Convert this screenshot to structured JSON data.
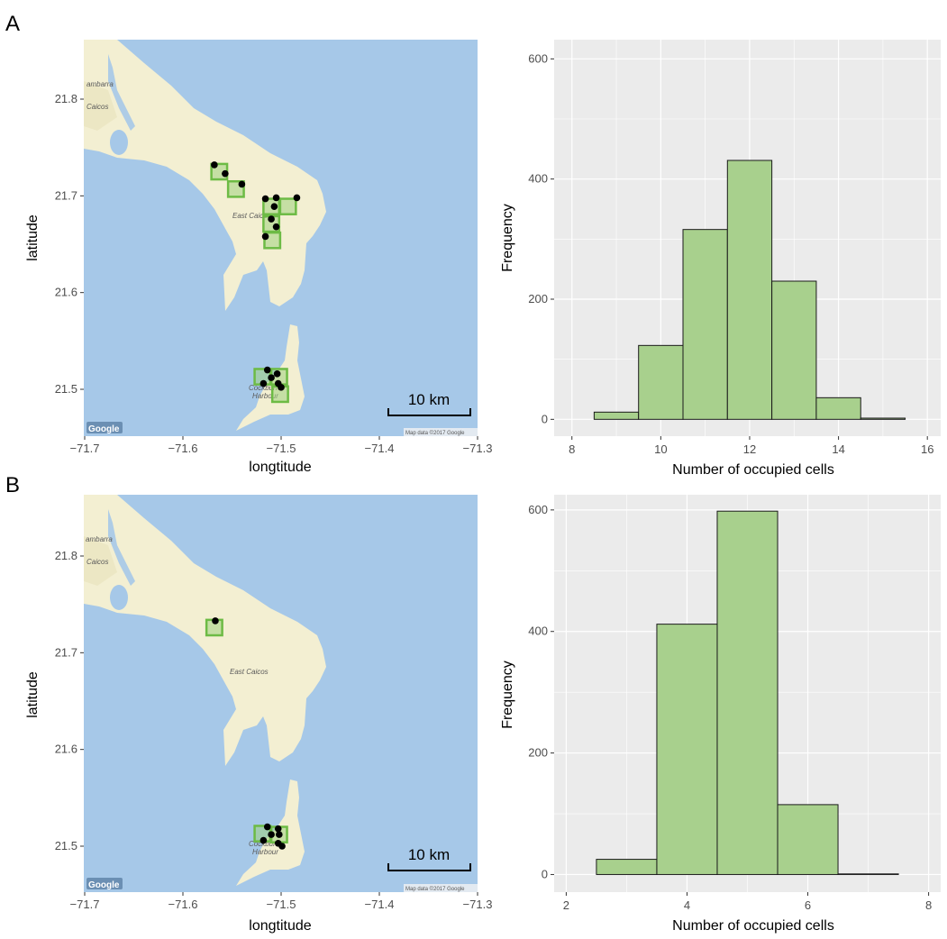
{
  "panels": [
    {
      "label": "A",
      "map": {
        "xlabel": "longtitude",
        "ylabel": "latitude",
        "xticks": [
          -71.7,
          -71.6,
          -71.5,
          -71.4,
          -71.3
        ],
        "yticks": [
          21.5,
          21.6,
          21.7,
          21.8
        ],
        "scale_bar_label": "10 km",
        "place_labels": [
          "ambarra",
          "Caicos",
          "East Caicos",
          "Cockburn",
          "Harbour"
        ],
        "attribution": "Map data ©2017 Google",
        "logo": "Google",
        "points": [
          {
            "lon": -71.568,
            "lat": 21.732
          },
          {
            "lon": -71.557,
            "lat": 21.723
          },
          {
            "lon": -71.54,
            "lat": 21.712
          },
          {
            "lon": -71.516,
            "lat": 21.697
          },
          {
            "lon": -71.505,
            "lat": 21.698
          },
          {
            "lon": -71.484,
            "lat": 21.698
          },
          {
            "lon": -71.507,
            "lat": 21.689
          },
          {
            "lon": -71.51,
            "lat": 21.676
          },
          {
            "lon": -71.505,
            "lat": 21.668
          },
          {
            "lon": -71.516,
            "lat": 21.658
          },
          {
            "lon": -71.514,
            "lat": 21.52
          },
          {
            "lon": -71.504,
            "lat": 21.516
          },
          {
            "lon": -71.51,
            "lat": 21.512
          },
          {
            "lon": -71.503,
            "lat": 21.506
          },
          {
            "lon": -71.5,
            "lat": 21.502
          },
          {
            "lon": -71.518,
            "lat": 21.506
          }
        ],
        "cells": [
          {
            "lon": -71.563,
            "lat": 21.725
          },
          {
            "lon": -71.546,
            "lat": 21.707
          },
          {
            "lon": -71.51,
            "lat": 21.689
          },
          {
            "lon": -71.493,
            "lat": 21.689
          },
          {
            "lon": -71.51,
            "lat": 21.671
          },
          {
            "lon": -71.509,
            "lat": 21.654
          },
          {
            "lon": -71.519,
            "lat": 21.513
          },
          {
            "lon": -71.502,
            "lat": 21.513
          },
          {
            "lon": -71.501,
            "lat": 21.495
          }
        ]
      },
      "chart_data": {
        "type": "bar",
        "xlabel": "Number of occupied cells",
        "ylabel": "Frequency",
        "categories": [
          9,
          10,
          11,
          12,
          13,
          14,
          15
        ],
        "values": [
          12,
          123,
          316,
          431,
          230,
          36,
          2
        ],
        "xlim": [
          7.6,
          16.3
        ],
        "ylim": [
          -28,
          632
        ],
        "xticks": [
          8,
          10,
          12,
          14,
          16
        ],
        "yticks": [
          0,
          200,
          400,
          600
        ],
        "grid": true,
        "bar_color": "#a8d08d"
      }
    },
    {
      "label": "B",
      "map": {
        "xlabel": "longtitude",
        "ylabel": "latitude",
        "xticks": [
          -71.7,
          -71.6,
          -71.5,
          -71.4,
          -71.3
        ],
        "yticks": [
          21.5,
          21.6,
          21.7,
          21.8
        ],
        "scale_bar_label": "10 km",
        "place_labels": [
          "ambarra",
          "Caicos",
          "East Caicos",
          "Cockburn",
          "Harbour"
        ],
        "attribution": "Map data ©2017 Google",
        "logo": "Google",
        "points": [
          {
            "lon": -71.567,
            "lat": 21.733
          },
          {
            "lon": -71.514,
            "lat": 21.52
          },
          {
            "lon": -71.503,
            "lat": 21.518
          },
          {
            "lon": -71.51,
            "lat": 21.512
          },
          {
            "lon": -71.502,
            "lat": 21.512
          },
          {
            "lon": -71.503,
            "lat": 21.503
          },
          {
            "lon": -71.499,
            "lat": 21.5
          },
          {
            "lon": -71.518,
            "lat": 21.506
          }
        ],
        "cells": [
          {
            "lon": -71.568,
            "lat": 21.726
          },
          {
            "lon": -71.519,
            "lat": 21.513
          },
          {
            "lon": -71.502,
            "lat": 21.512
          }
        ]
      },
      "chart_data": {
        "type": "bar",
        "xlabel": "Number of occupied cells",
        "ylabel": "Frequency",
        "categories": [
          3,
          4,
          5,
          6,
          7
        ],
        "values": [
          25,
          412,
          598,
          115,
          1
        ],
        "xlim": [
          1.8,
          8.2
        ],
        "ylim": [
          -29,
          625
        ],
        "xticks": [
          2,
          4,
          6,
          8
        ],
        "yticks": [
          0,
          200,
          400,
          600
        ],
        "grid": true,
        "bar_color": "#a8d08d"
      }
    }
  ],
  "colors": {
    "sea": "#a6c8e8",
    "land": "#f3efd2",
    "land_dark": "#ece7c4",
    "cell_stroke": "#6dbb45",
    "cell_fill": "#9fd17e",
    "panel_bg": "#ebebeb",
    "grid": "#ffffff"
  }
}
